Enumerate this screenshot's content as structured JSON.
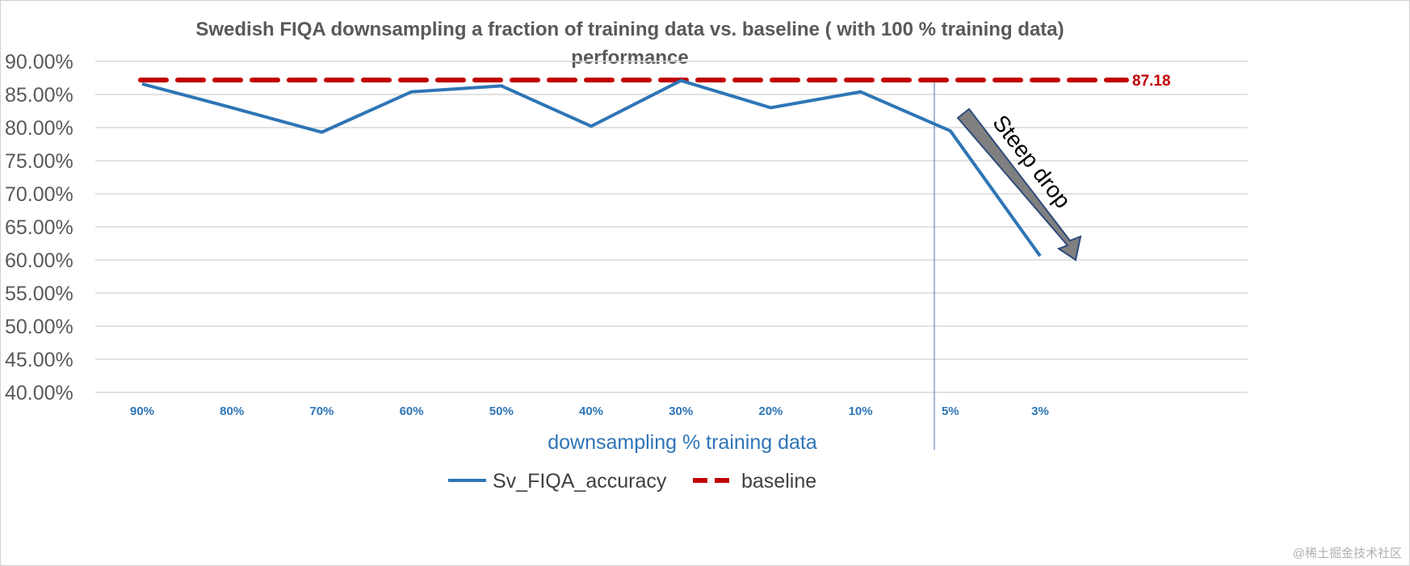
{
  "chart_data": {
    "type": "line",
    "title": "Swedish FIQA downsampling a fraction of training data vs. baseline ( with 100 % training data) performance",
    "title_lines": [
      "Swedish FIQA downsampling a fraction of training data vs. baseline ( with 100 % training data)",
      "performance"
    ],
    "xlabel": "downsampling % training data",
    "ylabel": "",
    "categories": [
      "90%",
      "80%",
      "70%",
      "60%",
      "50%",
      "40%",
      "30%",
      "20%",
      "10%",
      "5%",
      "3%"
    ],
    "yticks": [
      "40.00%",
      "45.00%",
      "50.00%",
      "55.00%",
      "60.00%",
      "65.00%",
      "70.00%",
      "75.00%",
      "80.00%",
      "85.00%",
      "90.00%"
    ],
    "ylim": [
      40,
      90
    ],
    "grid": true,
    "legend_position": "bottom",
    "series": [
      {
        "name": "Sv_FIQA_accuracy",
        "color": "#2e75b6",
        "style": "solid",
        "values": [
          86.6,
          83.0,
          79.3,
          85.4,
          86.3,
          80.2,
          87.1,
          83.0,
          85.4,
          79.5,
          60.6
        ]
      },
      {
        "name": "baseline",
        "color": "#c00000",
        "style": "dashed",
        "value": 87.18,
        "data_label": "87.18"
      }
    ],
    "annotations": [
      {
        "text": "Steep drop",
        "type": "arrow",
        "color": "#808080"
      }
    ]
  },
  "watermark": "@稀土掘金技术社区"
}
